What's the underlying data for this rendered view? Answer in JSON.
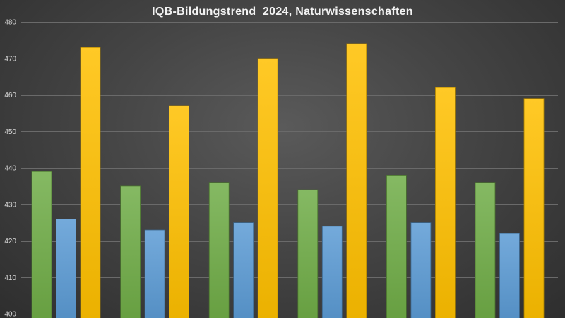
{
  "chart_data": {
    "type": "bar",
    "title": "IQB-Bildungstrend  2024, Naturwissenschaften",
    "xlabel": "",
    "ylabel": "",
    "ylim": [
      400,
      480
    ],
    "yticks": [
      400,
      410,
      420,
      430,
      440,
      450,
      460,
      470,
      480
    ],
    "grid": true,
    "categories": [
      "",
      "",
      "",
      "",
      "",
      ""
    ],
    "series": [
      {
        "color": "#70ad47",
        "values": [
          439,
          435,
          436,
          434,
          438,
          436
        ]
      },
      {
        "color": "#5b9bd5",
        "values": [
          426,
          423,
          425,
          424,
          425,
          422
        ]
      },
      {
        "color": "#ffc000",
        "values": [
          473,
          457,
          470,
          474,
          462,
          459
        ]
      }
    ]
  }
}
